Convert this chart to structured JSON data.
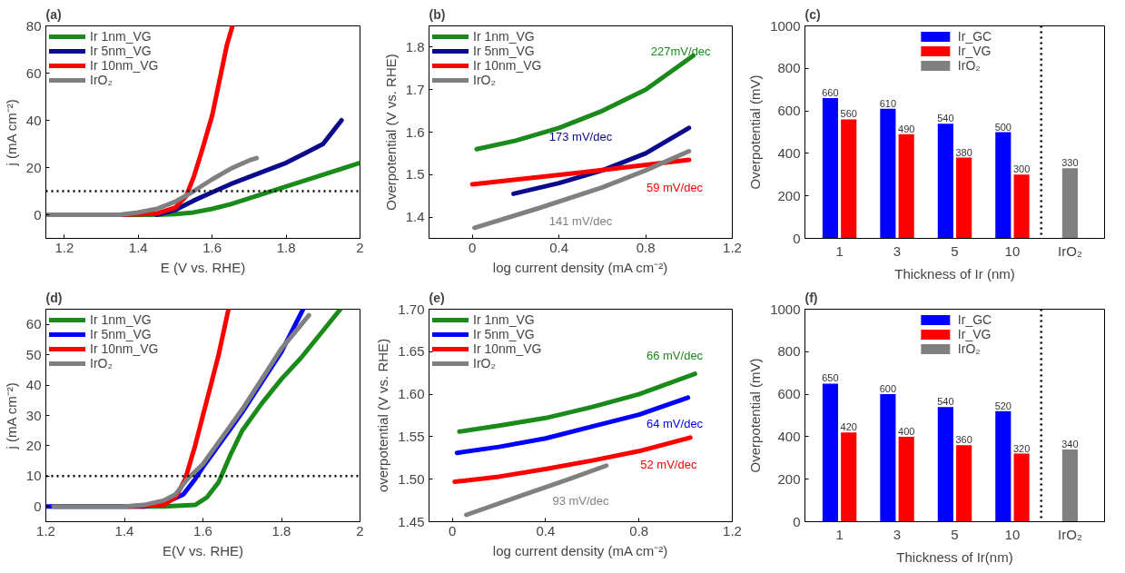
{
  "chart_data": [
    {
      "type": "line",
      "title": "(a)",
      "xlabel": "E (V vs. RHE)",
      "ylabel": "j (mA cm⁻²)",
      "xlim": [
        1.15,
        2.0
      ],
      "xticks": [
        1.2,
        1.4,
        1.6,
        1.8,
        2.0
      ],
      "ylim": [
        -10,
        80
      ],
      "yticks": [
        0,
        20,
        40,
        60,
        80
      ],
      "grid": false,
      "legend": "top left",
      "line_style": "solid",
      "ref_lines": [
        {
          "axis": "y",
          "value": 10,
          "line_style": "dotted",
          "color": "#000000"
        }
      ],
      "series": [
        {
          "name": "Ir 1nm_VG",
          "color": "#1a8a1a",
          "x": [
            1.15,
            1.45,
            1.5,
            1.55,
            1.6,
            1.65,
            1.7,
            1.75,
            1.8,
            1.85,
            1.9,
            1.95,
            2.0
          ],
          "values": [
            0,
            0,
            0.3,
            1,
            2.5,
            4.5,
            7,
            9.5,
            12,
            14.5,
            17,
            19.5,
            22
          ]
        },
        {
          "name": "Ir 5nm_VG",
          "color": "#0a0a8c",
          "x": [
            1.45,
            1.5,
            1.55,
            1.6,
            1.65,
            1.7,
            1.75,
            1.8,
            1.85,
            1.9,
            1.93,
            1.95
          ],
          "values": [
            0,
            2,
            6,
            9.5,
            13,
            16,
            19,
            22,
            26,
            30,
            36,
            40
          ]
        },
        {
          "name": "Ir 10nm_VG",
          "color": "#ff0000",
          "x": [
            1.35,
            1.45,
            1.5,
            1.53,
            1.55,
            1.57,
            1.6,
            1.62,
            1.64,
            1.655
          ],
          "values": [
            0,
            0.5,
            3,
            8,
            16,
            26,
            42,
            57,
            72,
            80
          ]
        },
        {
          "name": "IrO₂",
          "color": "#808080",
          "x": [
            1.15,
            1.35,
            1.4,
            1.45,
            1.5,
            1.55,
            1.6,
            1.65,
            1.7,
            1.72
          ],
          "values": [
            0,
            0,
            1,
            2.5,
            5.5,
            10,
            15,
            19.5,
            23,
            24
          ]
        }
      ]
    },
    {
      "type": "line",
      "title": "(b)",
      "xlabel": "log current density (mA cm⁻²)",
      "ylabel": "Overpotential (V vs. RHE)",
      "xlim": [
        -0.2,
        1.2
      ],
      "xticks": [
        0.0,
        0.4,
        0.8,
        1.2
      ],
      "ylim": [
        1.35,
        1.85
      ],
      "yticks": [
        1.4,
        1.5,
        1.6,
        1.7,
        1.8
      ],
      "grid": false,
      "legend": "top left",
      "line_style": "solid",
      "series": [
        {
          "name": "Ir 1nm_VG",
          "color": "#1a8a1a",
          "x": [
            0.02,
            0.2,
            0.4,
            0.6,
            0.8,
            1.02
          ],
          "values": [
            1.56,
            1.58,
            1.61,
            1.65,
            1.7,
            1.78
          ]
        },
        {
          "name": "Ir 5nm_VG",
          "color": "#0a0a8c",
          "x": [
            0.19,
            0.4,
            0.6,
            0.8,
            1.0
          ],
          "values": [
            1.455,
            1.48,
            1.51,
            1.55,
            1.61
          ]
        },
        {
          "name": "Ir 10nm_VG",
          "color": "#ff0000",
          "x": [
            0.0,
            0.5,
            1.0
          ],
          "values": [
            1.477,
            1.505,
            1.535
          ]
        },
        {
          "name": "IrO₂",
          "color": "#808080",
          "x": [
            0.01,
            0.3,
            0.6,
            0.8,
            1.0
          ],
          "values": [
            1.375,
            1.42,
            1.47,
            1.51,
            1.555
          ]
        }
      ],
      "annotations": [
        "227mV/dec",
        "173 mV/dec",
        "59 mV/dec",
        "141 mV/dec"
      ]
    },
    {
      "type": "bar",
      "title": "(c)",
      "xlabel": "Thickness of Ir (nm)",
      "ylabel": "Overpotential (mV)",
      "categories": [
        "1",
        "3",
        "5",
        "10",
        "IrO₂"
      ],
      "ylim": [
        0,
        1000
      ],
      "yticks": [
        0,
        200,
        400,
        600,
        800,
        1000
      ],
      "grid": false,
      "legend": "top",
      "data_labels": true,
      "series": [
        {
          "name": "Ir_GC",
          "color": "#0000ff",
          "values": [
            660,
            610,
            540,
            500,
            null
          ]
        },
        {
          "name": "Ir_VG",
          "color": "#ff0000",
          "values": [
            560,
            490,
            380,
            300,
            null
          ]
        },
        {
          "name": "IrO₂",
          "color": "#808080",
          "values": [
            null,
            null,
            null,
            null,
            330
          ]
        }
      ]
    },
    {
      "type": "line",
      "title": "(d)",
      "xlabel": "E(V vs. RHE)",
      "ylabel": "j (mA cm⁻²)",
      "xlim": [
        1.2,
        2.0
      ],
      "xticks": [
        1.2,
        1.4,
        1.6,
        1.8,
        2.0
      ],
      "ylim": [
        -5,
        65
      ],
      "yticks": [
        0,
        10,
        20,
        30,
        40,
        50,
        60
      ],
      "grid": false,
      "legend": "top left",
      "line_style": "solid",
      "ref_lines": [
        {
          "axis": "y",
          "value": 10,
          "line_style": "dotted",
          "color": "#000000"
        }
      ],
      "series": [
        {
          "name": "Ir 1nm_VG",
          "color": "#1a8a1a",
          "x": [
            1.22,
            1.5,
            1.58,
            1.61,
            1.64,
            1.67,
            1.7,
            1.75,
            1.8,
            1.85,
            1.9,
            1.95
          ],
          "values": [
            0,
            0,
            0.5,
            3,
            8,
            17,
            25,
            34,
            42,
            49,
            57,
            65
          ]
        },
        {
          "name": "Ir 5nm_VG",
          "color": "#0000ff",
          "x": [
            1.2,
            1.45,
            1.5,
            1.55,
            1.58,
            1.6,
            1.65,
            1.7,
            1.75,
            1.8,
            1.855
          ],
          "values": [
            0,
            0,
            1,
            4,
            9,
            13,
            22,
            31,
            41,
            51,
            65
          ]
        },
        {
          "name": "Ir 10nm_VG",
          "color": "#ff0000",
          "x": [
            1.41,
            1.5,
            1.53,
            1.555,
            1.58,
            1.61,
            1.64,
            1.665
          ],
          "values": [
            0,
            0.5,
            3,
            9,
            20,
            35,
            50,
            65
          ]
        },
        {
          "name": "IrO₂",
          "color": "#808080",
          "x": [
            1.22,
            1.4,
            1.45,
            1.5,
            1.53,
            1.56,
            1.6,
            1.65,
            1.7,
            1.75,
            1.8,
            1.87
          ],
          "values": [
            0,
            0,
            0.5,
            2,
            4,
            9,
            14,
            23,
            32,
            42,
            52,
            63
          ]
        }
      ]
    },
    {
      "type": "line",
      "title": "(e)",
      "xlabel": "log current density (mA cm⁻²)",
      "ylabel": "overpotential (V vs. RHE)",
      "xlim": [
        -0.1,
        1.2
      ],
      "xticks": [
        0.0,
        0.4,
        0.8,
        1.2
      ],
      "ylim": [
        1.45,
        1.7
      ],
      "yticks": [
        {
          "value": 1.45,
          "label": "1.45"
        },
        {
          "value": 1.5,
          "label": "1.50"
        },
        {
          "value": 1.55,
          "label": "1.55"
        },
        {
          "value": 1.6,
          "label": "1.60"
        },
        {
          "value": 1.65,
          "label": "1.65"
        },
        {
          "value": 1.7,
          "label": "1.70"
        }
      ],
      "grid": false,
      "legend": "top left",
      "line_style": "solid",
      "series": [
        {
          "name": "Ir 1nm_VG",
          "color": "#1a8a1a",
          "x": [
            0.03,
            0.2,
            0.4,
            0.6,
            0.8,
            1.04
          ],
          "values": [
            1.556,
            1.563,
            1.572,
            1.585,
            1.6,
            1.624
          ]
        },
        {
          "name": "Ir 5nm_VG",
          "color": "#0000ff",
          "x": [
            0.02,
            0.2,
            0.4,
            0.6,
            0.8,
            1.01
          ],
          "values": [
            1.531,
            1.538,
            1.548,
            1.562,
            1.576,
            1.596
          ]
        },
        {
          "name": "Ir 10nm_VG",
          "color": "#ff0000",
          "x": [
            0.01,
            0.2,
            0.4,
            0.6,
            0.8,
            1.02
          ],
          "values": [
            1.497,
            1.503,
            1.512,
            1.522,
            1.533,
            1.549
          ]
        },
        {
          "name": "IrO₂",
          "color": "#808080",
          "x": [
            0.06,
            0.3,
            0.5,
            0.66
          ],
          "values": [
            1.458,
            1.481,
            1.5,
            1.516
          ]
        }
      ],
      "annotations": [
        "66 mV/dec",
        "64 mV/dec",
        "52 mV/dec",
        "93 mV/dec"
      ]
    },
    {
      "type": "bar",
      "title": "(f)",
      "xlabel": "Thickness of Ir(nm)",
      "ylabel": "Overpotential (mV)",
      "categories": [
        "1",
        "3",
        "5",
        "10",
        "IrO₂"
      ],
      "ylim": [
        0,
        1000
      ],
      "yticks": [
        0,
        200,
        400,
        600,
        800,
        1000
      ],
      "grid": false,
      "legend": "top",
      "data_labels": true,
      "series": [
        {
          "name": "Ir_GC",
          "color": "#0000ff",
          "values": [
            650,
            600,
            540,
            520,
            null
          ]
        },
        {
          "name": "Ir_VG",
          "color": "#ff0000",
          "values": [
            420,
            400,
            360,
            320,
            null
          ]
        },
        {
          "name": "IrO₂",
          "color": "#808080",
          "values": [
            null,
            null,
            null,
            null,
            340
          ]
        }
      ]
    }
  ]
}
